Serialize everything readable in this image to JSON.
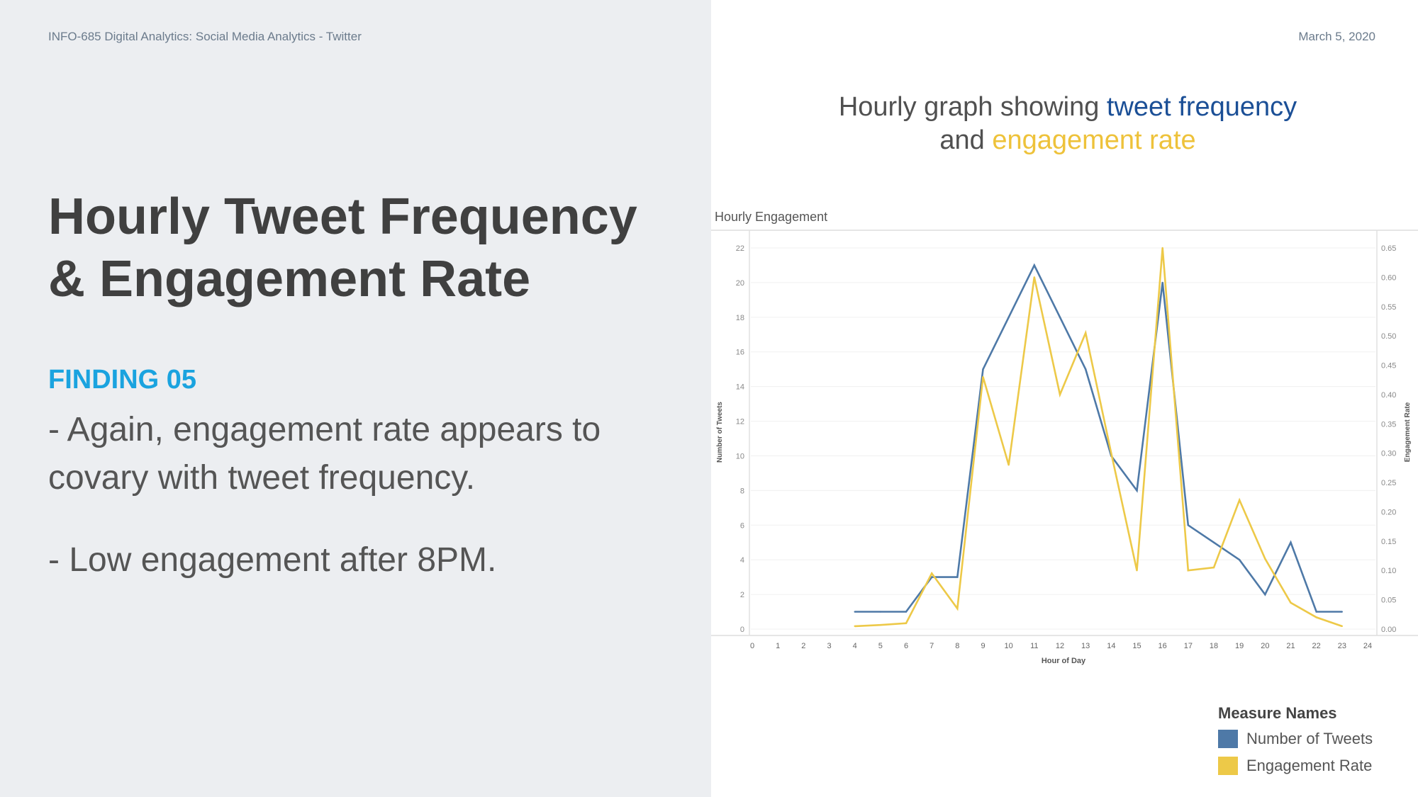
{
  "slide": {
    "course_header": "INFO-685  Digital Analytics: Social Media Analytics - Twitter",
    "date": "March 5, 2020",
    "title_line1": "Hourly Tweet Frequency",
    "title_line2": "& Engagement Rate",
    "finding_label": "FINDING 05",
    "finding_text_1": "- Again, engagement rate appears to covary with tweet frequency.",
    "finding_text_2": "- Low engagement after 8PM.",
    "chart_heading": {
      "prefix": "Hourly graph showing ",
      "highlight1": "tweet frequency",
      "middle": "and ",
      "highlight2": "engagement rate"
    }
  },
  "colors": {
    "tweets": "#4e79a7",
    "engagement": "#edc948",
    "heading_blue": "#1b4f96",
    "heading_yellow": "#eec23a",
    "finding_label": "#1aa3df"
  },
  "chart_data": {
    "type": "line",
    "title": "Hourly Engagement",
    "xlabel": "Hour of Day",
    "ylabel_left": "Number of Tweets",
    "ylabel_right": "Engagement Rate",
    "xlim": [
      0,
      24
    ],
    "ylim_left": [
      0,
      22
    ],
    "ylim_right": [
      0,
      0.65
    ],
    "x_ticks": [
      "0",
      "1",
      "2",
      "3",
      "4",
      "5",
      "6",
      "7",
      "8",
      "9",
      "10",
      "11",
      "12",
      "13",
      "14",
      "15",
      "16",
      "17",
      "18",
      "19",
      "20",
      "21",
      "22",
      "23",
      "24"
    ],
    "y_left_ticks": [
      "0",
      "2",
      "4",
      "6",
      "8",
      "10",
      "12",
      "14",
      "16",
      "18",
      "20",
      "22"
    ],
    "y_right_ticks": [
      "0.00",
      "0.05",
      "0.10",
      "0.15",
      "0.20",
      "0.25",
      "0.30",
      "0.35",
      "0.40",
      "0.45",
      "0.50",
      "0.55",
      "0.60",
      "0.65"
    ],
    "legend_position": "bottom-right",
    "legend_title": "Measure Names",
    "series": [
      {
        "name": "Number of Tweets",
        "axis": "left",
        "x": [
          4,
          5,
          6,
          7,
          8,
          9,
          10,
          11,
          12,
          13,
          14,
          15,
          16,
          17,
          18,
          19,
          20,
          21,
          22,
          23
        ],
        "values": [
          1,
          1,
          1,
          3,
          3,
          15,
          18,
          21,
          18,
          15,
          10,
          8,
          20,
          6,
          5,
          4,
          2,
          5,
          1,
          1
        ]
      },
      {
        "name": "Engagement Rate",
        "axis": "right",
        "x": [
          4,
          5,
          6,
          7,
          8,
          9,
          10,
          11,
          12,
          13,
          14,
          15,
          16,
          17,
          18,
          19,
          20,
          21,
          22,
          23
        ],
        "values": [
          0.005,
          0.007,
          0.01,
          0.095,
          0.035,
          0.43,
          0.28,
          0.6,
          0.4,
          0.505,
          0.3,
          0.1,
          0.65,
          0.1,
          0.105,
          0.22,
          0.12,
          0.045,
          0.02,
          0.005
        ]
      }
    ]
  }
}
